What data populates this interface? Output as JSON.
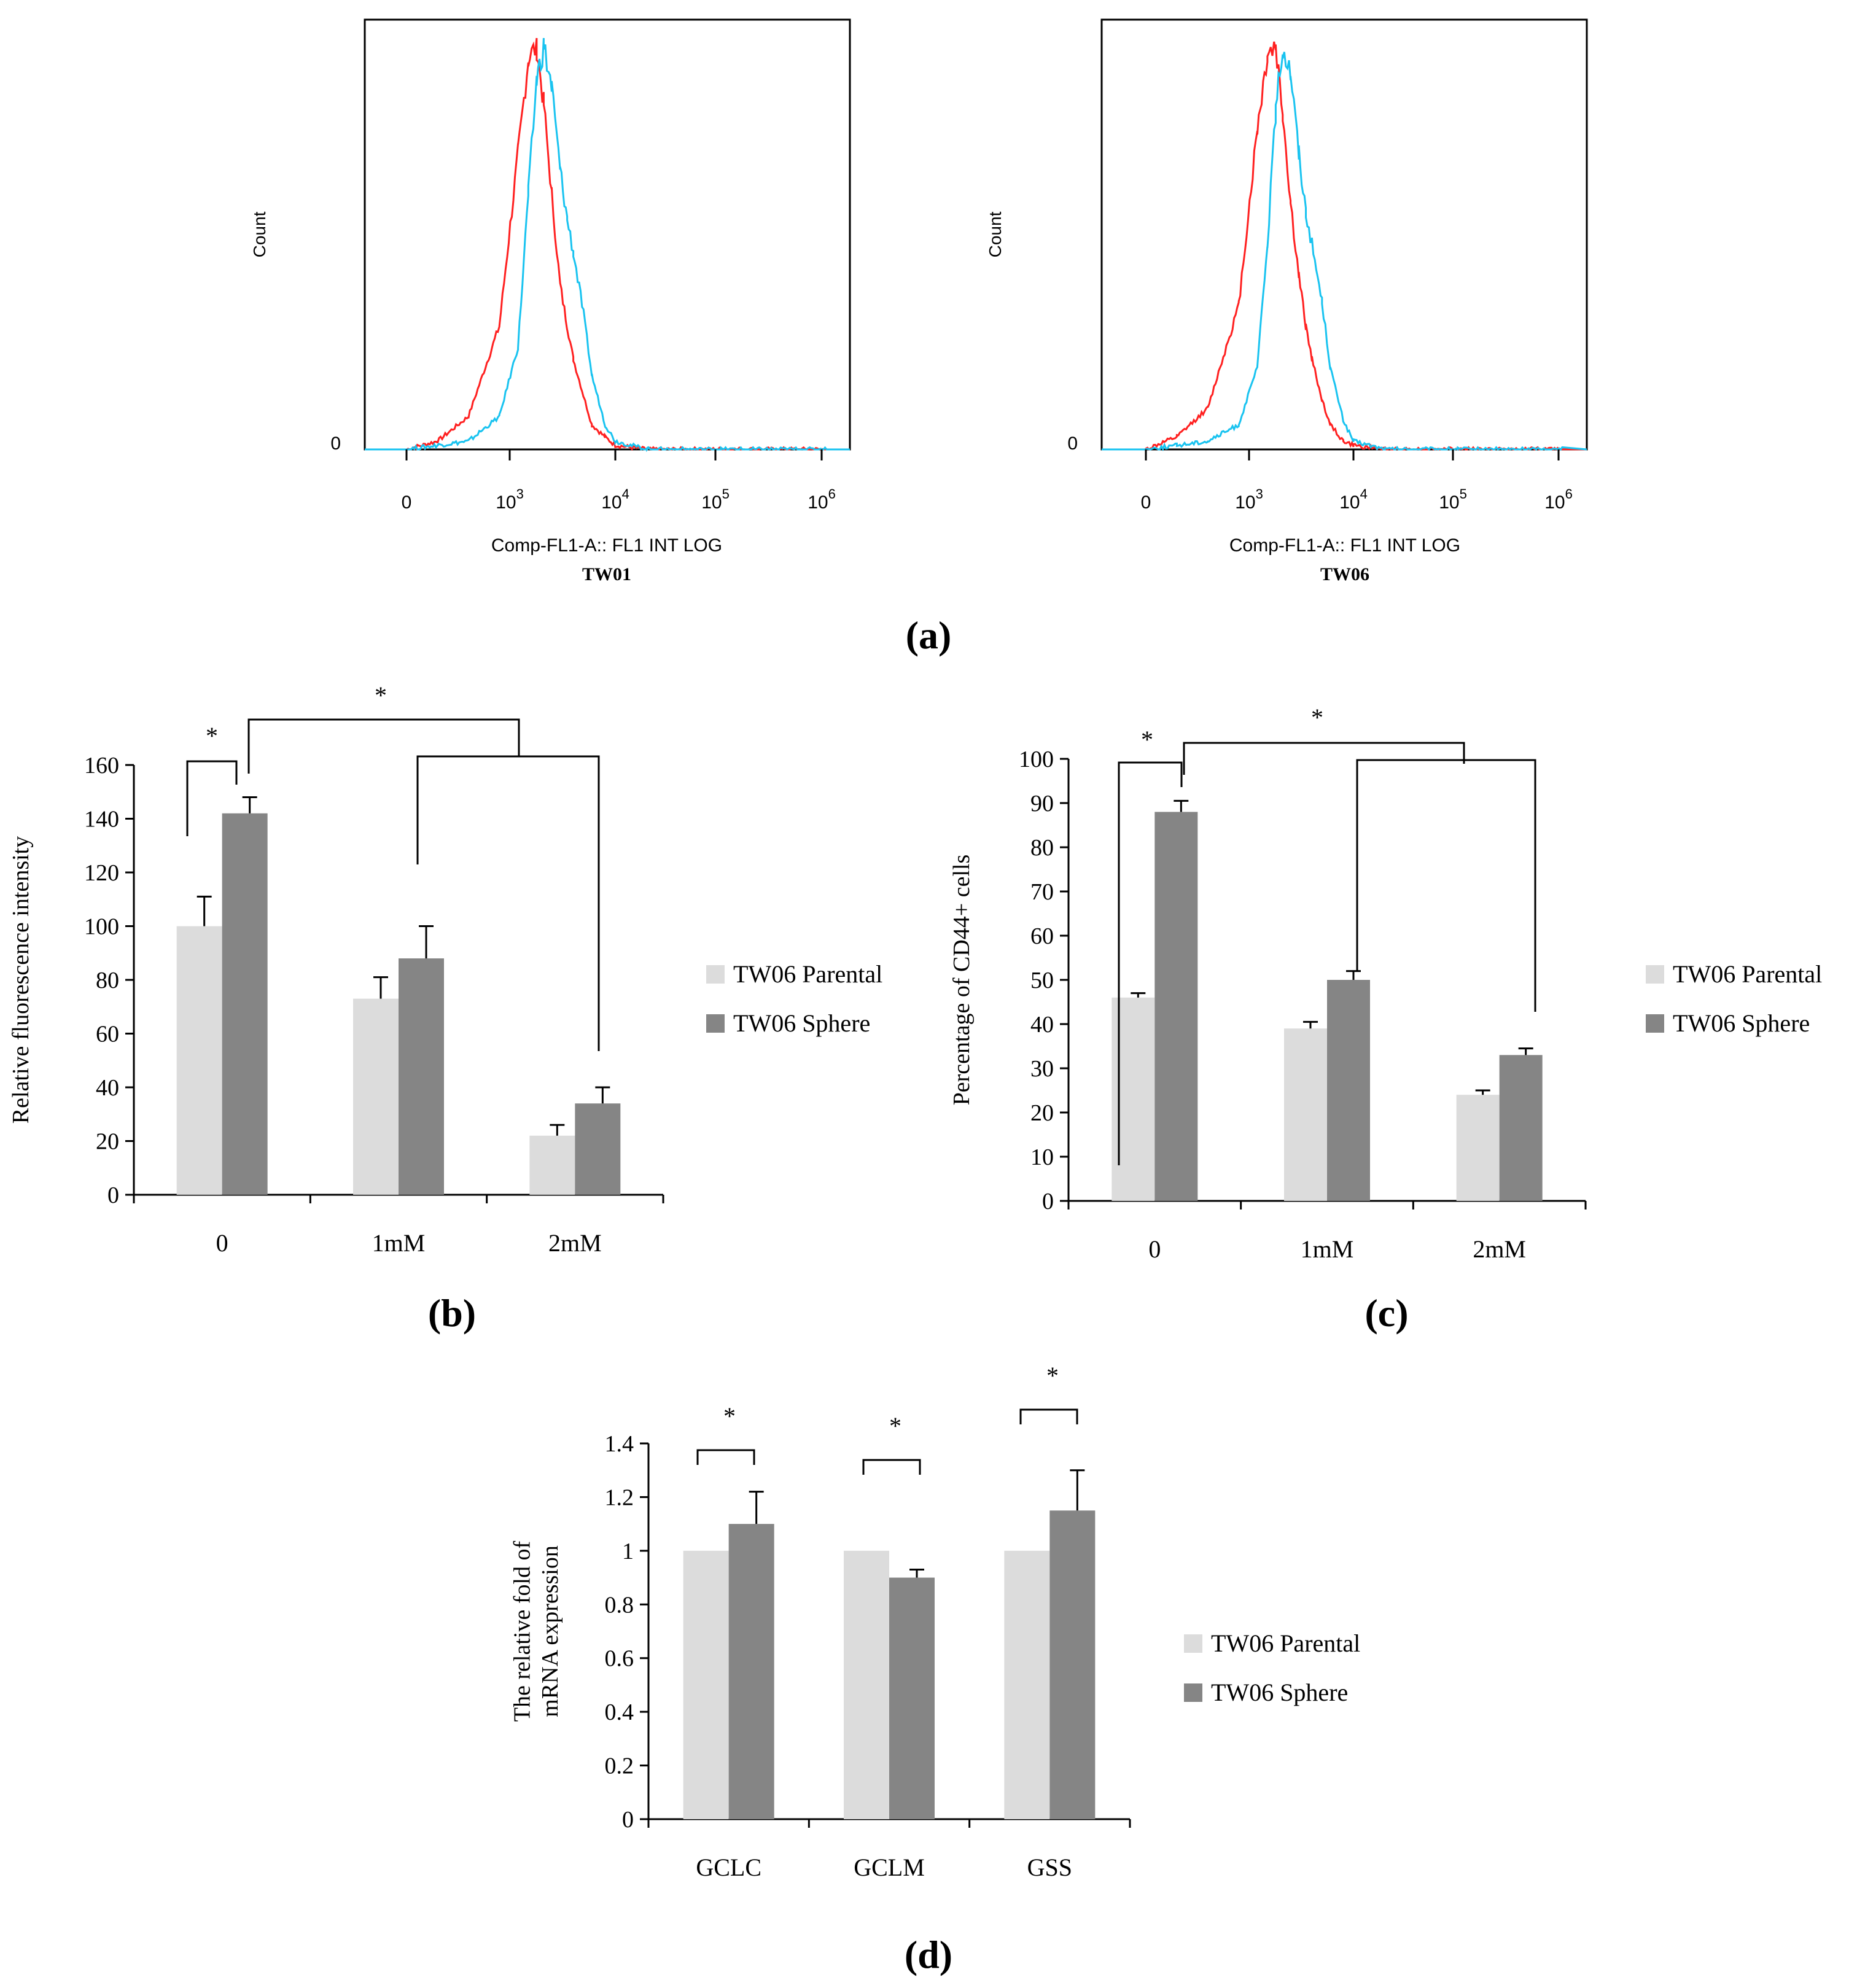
{
  "panel_labels": [
    "(a)",
    "(b)",
    "(c)",
    "(d)"
  ],
  "colors": {
    "parental": "#dcdcdc",
    "sphere": "#858585",
    "histogram_control": "#ff2020",
    "histogram_sample": "#19c3f0"
  },
  "chart_data": [
    {
      "type": "line",
      "panel": "a",
      "subtitle": "TW01",
      "xlabel": "Comp-FL1-A:: FL1 INT LOG",
      "ylabel": "Count",
      "x_ticks": [
        "0",
        "10^3",
        "10^4",
        "10^5",
        "10^6"
      ],
      "y_ticks": [
        "0"
      ],
      "series": [
        {
          "color": "#ff2020",
          "x": [
            0,
            300,
            600,
            900,
            1200,
            1500,
            1800,
            2100,
            2500,
            3000,
            3500,
            4000,
            5000,
            6000,
            8000,
            10000,
            20000,
            100000,
            1000000
          ],
          "y": [
            0,
            0.02,
            0.08,
            0.3,
            0.72,
            0.95,
            0.98,
            0.84,
            0.62,
            0.4,
            0.3,
            0.22,
            0.13,
            0.06,
            0.03,
            0.01,
            0,
            0,
            0
          ]
        },
        {
          "color": "#19c3f0",
          "x": [
            0,
            300,
            600,
            900,
            1200,
            1500,
            1800,
            2100,
            2500,
            3000,
            3500,
            4000,
            5000,
            6000,
            8000,
            10000,
            20000,
            100000,
            1000000
          ],
          "y": [
            0,
            0.01,
            0.02,
            0.08,
            0.25,
            0.62,
            0.9,
            0.98,
            0.88,
            0.68,
            0.56,
            0.48,
            0.33,
            0.18,
            0.06,
            0.02,
            0,
            0,
            0
          ]
        }
      ]
    },
    {
      "type": "line",
      "panel": "a",
      "subtitle": "TW06",
      "xlabel": "Comp-FL1-A:: FL1 INT LOG",
      "ylabel": "Count",
      "x_ticks": [
        "0",
        "10^3",
        "10^4",
        "10^5",
        "10^6"
      ],
      "y_ticks": [
        "0"
      ],
      "series": [
        {
          "color": "#ff2020",
          "x": [
            0,
            300,
            600,
            900,
            1200,
            1500,
            1800,
            2100,
            2500,
            3000,
            3500,
            4000,
            5000,
            6000,
            8000,
            10000,
            20000,
            100000,
            1000000
          ],
          "y": [
            0,
            0.03,
            0.1,
            0.35,
            0.78,
            0.96,
            0.98,
            0.82,
            0.6,
            0.42,
            0.3,
            0.22,
            0.12,
            0.06,
            0.02,
            0.01,
            0,
            0,
            0
          ]
        },
        {
          "color": "#19c3f0",
          "x": [
            0,
            300,
            600,
            900,
            1200,
            1500,
            1800,
            2100,
            2500,
            3000,
            3500,
            4000,
            5000,
            6000,
            8000,
            10000,
            20000,
            100000,
            1000000
          ],
          "y": [
            0,
            0.01,
            0.02,
            0.06,
            0.2,
            0.5,
            0.82,
            0.98,
            0.92,
            0.72,
            0.58,
            0.5,
            0.36,
            0.2,
            0.07,
            0.02,
            0,
            0,
            0
          ]
        }
      ]
    },
    {
      "type": "bar",
      "panel": "b",
      "categories": [
        "0",
        "1mM",
        "2mM"
      ],
      "ylabel": "Relative fluorescence intensity",
      "ylim": [
        0,
        160
      ],
      "y_ticks": [
        0,
        20,
        40,
        60,
        80,
        100,
        120,
        140,
        160
      ],
      "series": [
        {
          "name": "TW06 Parental",
          "values": [
            100,
            73,
            22
          ],
          "errors": [
            11,
            8,
            4
          ]
        },
        {
          "name": "TW06 Sphere",
          "values": [
            142,
            88,
            34
          ],
          "errors": [
            6,
            12,
            6
          ]
        }
      ],
      "significance": [
        "*",
        "*"
      ],
      "legend": "right"
    },
    {
      "type": "bar",
      "panel": "c",
      "categories": [
        "0",
        "1mM",
        "2mM"
      ],
      "ylabel": "Percentage of CD44+ cells",
      "ylim": [
        0,
        100
      ],
      "y_ticks": [
        0,
        10,
        20,
        30,
        40,
        50,
        60,
        70,
        80,
        90,
        100
      ],
      "series": [
        {
          "name": "TW06 Parental",
          "values": [
            46,
            39,
            24
          ],
          "errors": [
            1,
            1.5,
            1
          ]
        },
        {
          "name": "TW06 Sphere",
          "values": [
            88,
            50,
            33
          ],
          "errors": [
            2.5,
            2,
            1.5
          ]
        }
      ],
      "significance": [
        "*",
        "*"
      ],
      "legend": "right"
    },
    {
      "type": "bar",
      "panel": "d",
      "categories": [
        "GCLC",
        "GCLM",
        "GSS"
      ],
      "ylabel": "The relative fold of mRNA expression",
      "ylim": [
        0,
        1.4
      ],
      "y_ticks": [
        "0",
        "0.2",
        "0.4",
        "0.6",
        "0.8",
        "1",
        "1.2",
        "1.4"
      ],
      "series": [
        {
          "name": "TW06 Parental",
          "values": [
            1.0,
            1.0,
            1.0
          ],
          "errors": [
            0,
            0,
            0
          ]
        },
        {
          "name": "TW06 Sphere",
          "values": [
            1.1,
            0.9,
            1.15
          ],
          "errors": [
            0.12,
            0.03,
            0.15
          ]
        }
      ],
      "significance": [
        "*",
        "*",
        "*"
      ],
      "legend": "right"
    }
  ]
}
